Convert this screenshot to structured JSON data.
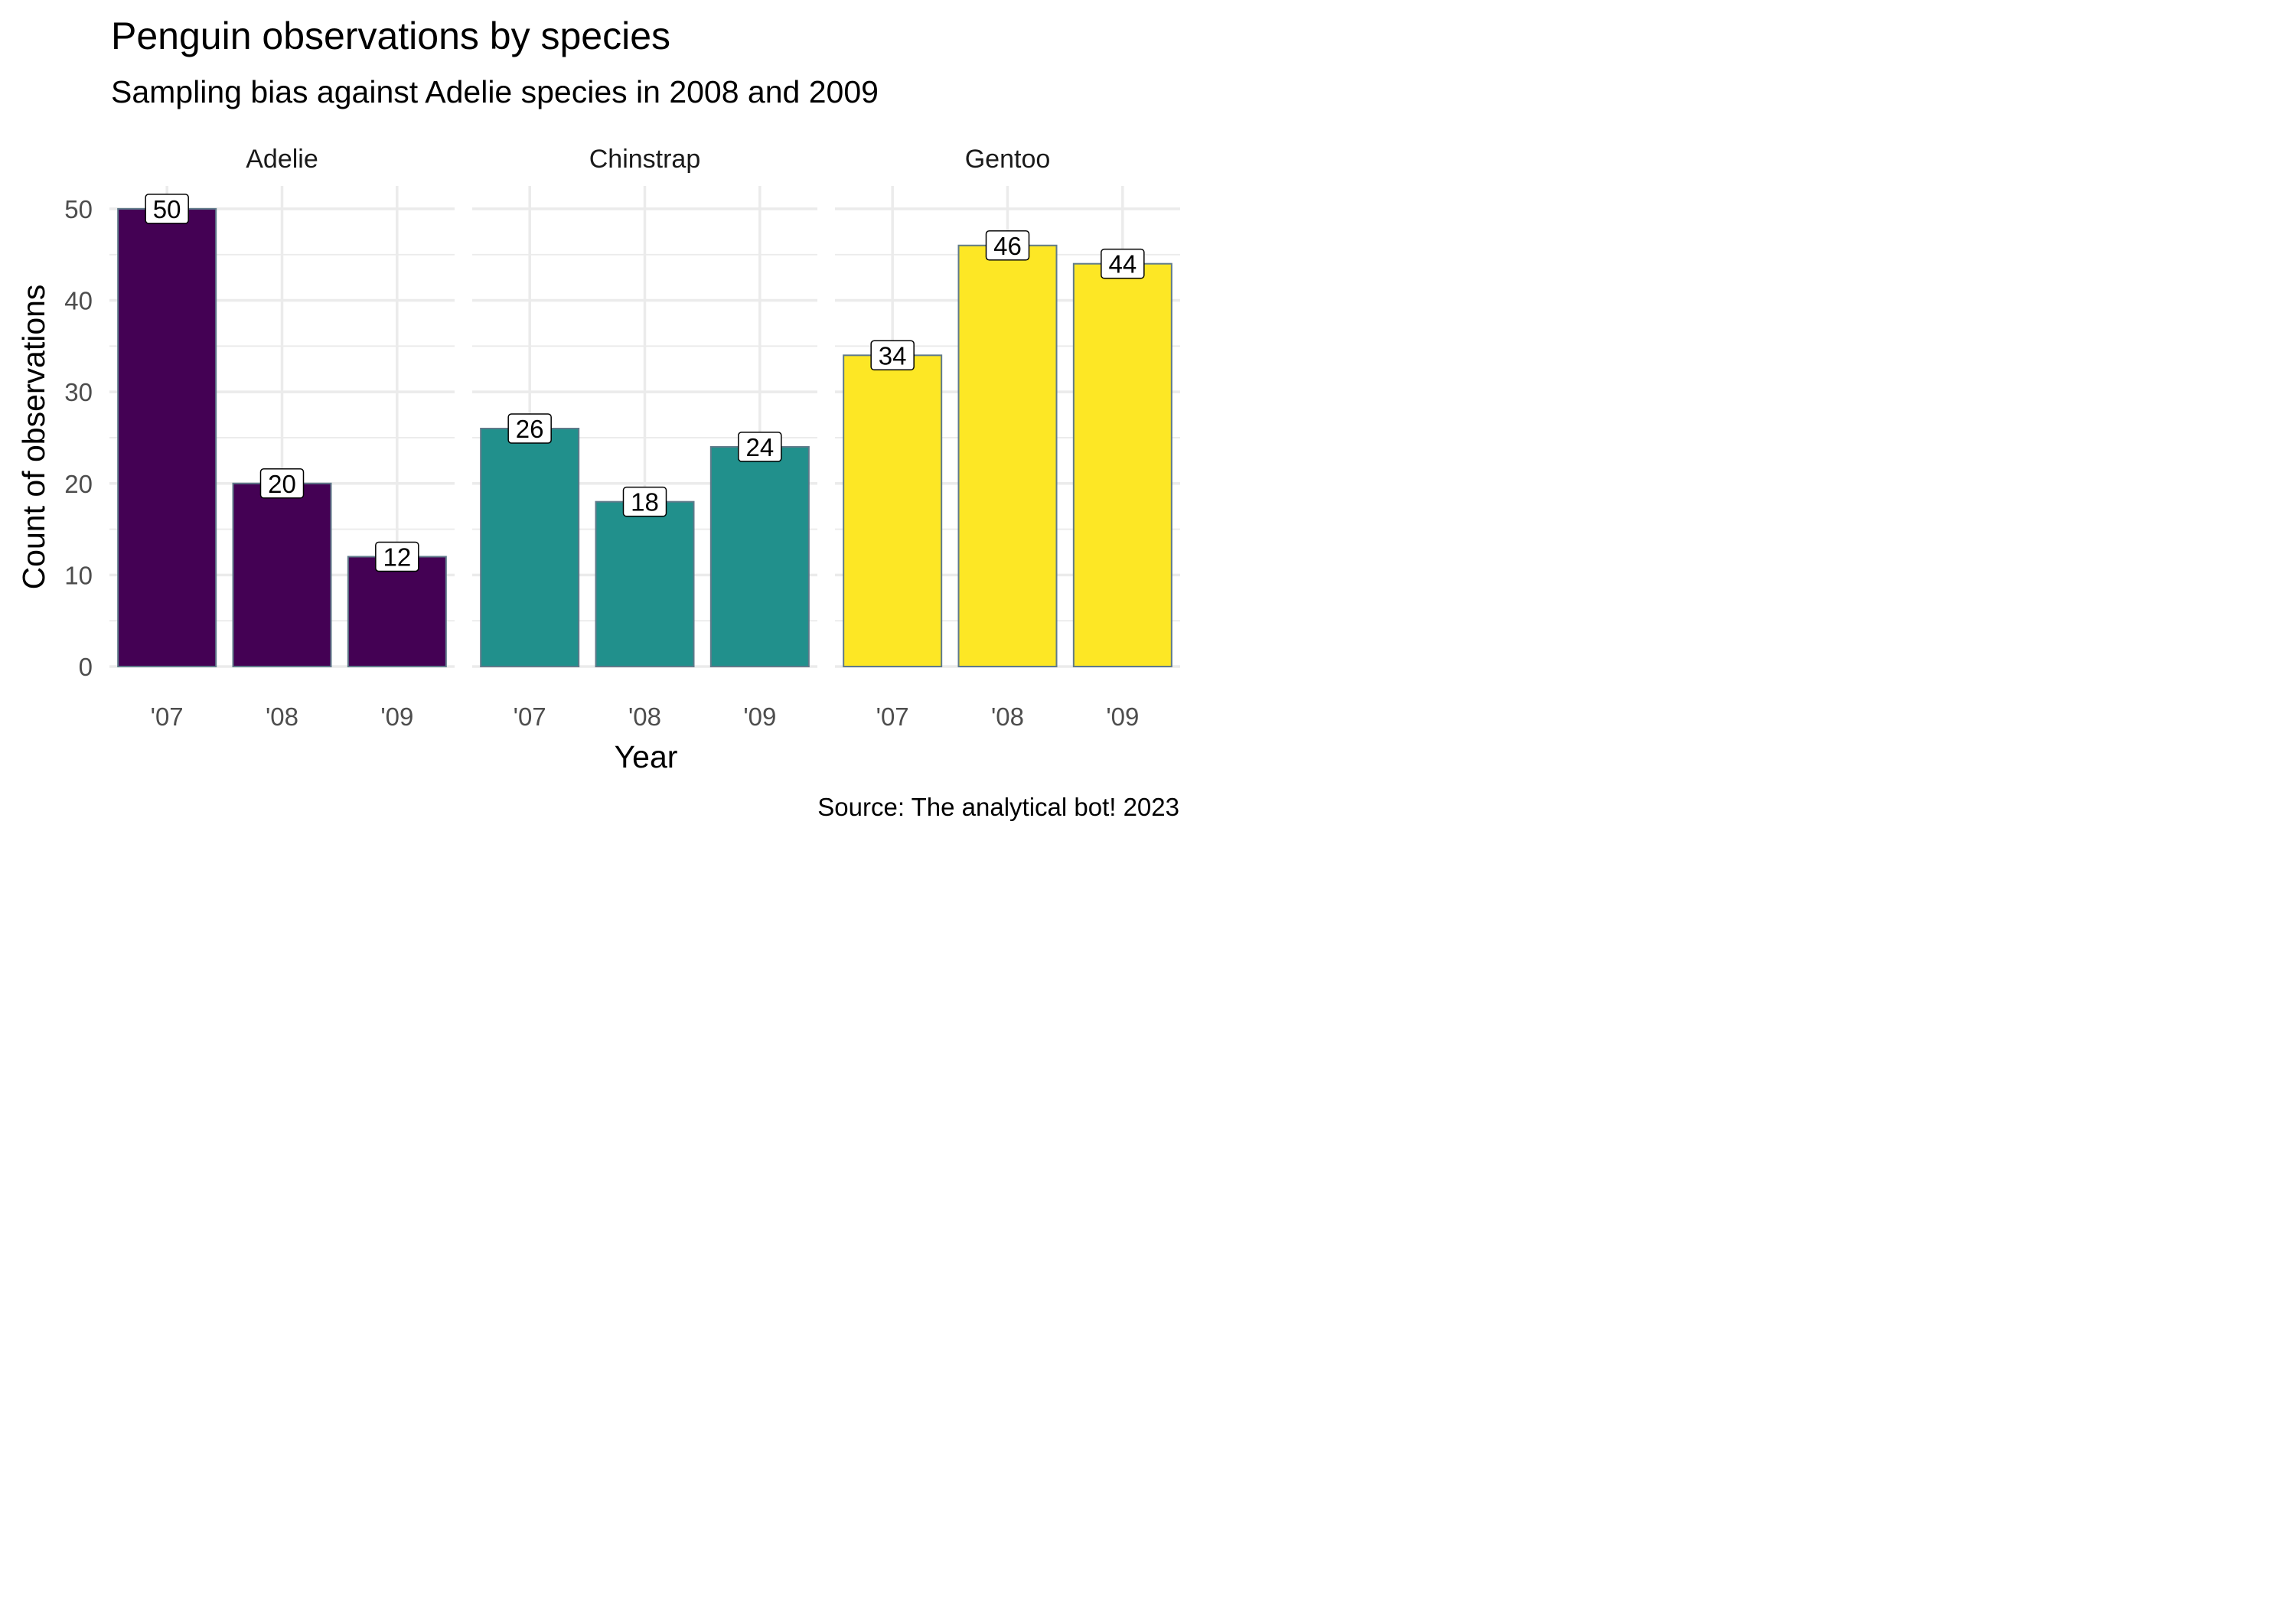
{
  "chart_data": {
    "type": "bar",
    "title": "Penguin observations by species",
    "subtitle": "Sampling bias against Adelie species in 2008 and 2009",
    "xlabel": "Year",
    "ylabel": "Count of observations",
    "caption": "Source: The analytical bot! 2023",
    "categories": [
      "'07",
      "'08",
      "'09"
    ],
    "ylim": [
      0,
      52.5
    ],
    "yticks": [
      0,
      10,
      20,
      30,
      40,
      50
    ],
    "grid": true,
    "legend": "none",
    "panels": [
      {
        "name": "Adelie",
        "color": "#440154",
        "values": [
          50,
          20,
          12
        ]
      },
      {
        "name": "Chinstrap",
        "color": "#21908C",
        "values": [
          26,
          18,
          24
        ]
      },
      {
        "name": "Gentoo",
        "color": "#FDE725",
        "values": [
          34,
          46,
          44
        ]
      }
    ],
    "bar_outline_color": "#5F7A8A",
    "grid_color": "#EBEBEB"
  }
}
